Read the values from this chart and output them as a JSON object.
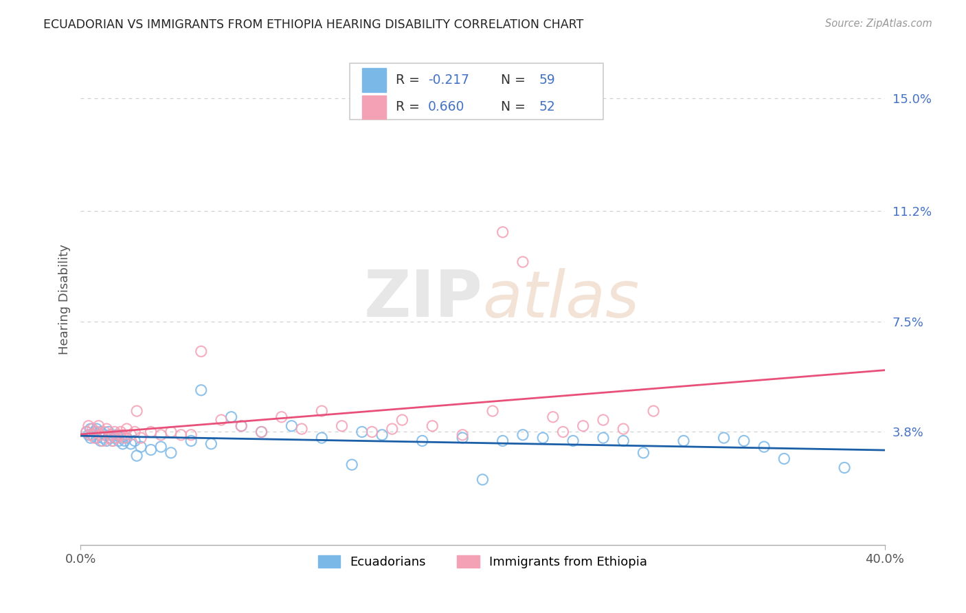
{
  "title": "ECUADORIAN VS IMMIGRANTS FROM ETHIOPIA HEARING DISABILITY CORRELATION CHART",
  "source": "Source: ZipAtlas.com",
  "ylabel": "Hearing Disability",
  "xlim": [
    0.0,
    40.0
  ],
  "ylim": [
    0.0,
    16.5
  ],
  "ytick_vals": [
    3.8,
    7.5,
    11.2,
    15.0
  ],
  "xtick_vals": [
    0.0,
    40.0
  ],
  "series1_label": "Ecuadorians",
  "series1_scatter_color": "#7ab8e8",
  "series1_line_color": "#1a5fa8",
  "series1_R": "-0.217",
  "series1_N": "59",
  "series2_label": "Immigrants from Ethiopia",
  "series2_scatter_color": "#f4a0b5",
  "series2_line_color": "#e8507a",
  "series2_R": "0.660",
  "series2_N": "52",
  "watermark_text": "ZIPatlas",
  "background_color": "#ffffff",
  "grid_color": "#d0d0d0",
  "title_color": "#222222",
  "tick_color": "#4472c4",
  "source_color": "#999999",
  "legend_R_label_color": "#333333",
  "legend_value_color": "#4472c4",
  "ecuadorians_x": [
    0.3,
    0.4,
    0.5,
    0.5,
    0.6,
    0.7,
    0.8,
    0.8,
    0.9,
    1.0,
    1.0,
    1.1,
    1.2,
    1.3,
    1.4,
    1.5,
    1.5,
    1.6,
    1.7,
    1.8,
    1.9,
    2.0,
    2.1,
    2.2,
    2.3,
    2.5,
    2.7,
    2.8,
    3.0,
    3.5,
    4.0,
    4.5,
    6.0,
    7.5,
    9.0,
    10.5,
    12.0,
    13.5,
    15.0,
    17.0,
    19.0,
    21.0,
    22.0,
    23.0,
    24.5,
    26.0,
    27.0,
    28.0,
    30.0,
    32.0,
    33.0,
    34.0,
    35.0,
    38.0,
    5.5,
    6.5,
    8.0,
    14.0,
    20.0
  ],
  "ecuadorians_y": [
    3.8,
    3.7,
    3.9,
    3.6,
    3.7,
    3.8,
    3.9,
    3.6,
    3.7,
    3.8,
    3.5,
    3.6,
    3.7,
    3.5,
    3.8,
    3.6,
    3.7,
    3.5,
    3.6,
    3.7,
    3.5,
    3.6,
    3.4,
    3.5,
    3.6,
    3.4,
    3.5,
    3.0,
    3.3,
    3.2,
    3.3,
    3.1,
    5.2,
    4.3,
    3.8,
    4.0,
    3.6,
    2.7,
    3.7,
    3.5,
    3.6,
    3.5,
    3.7,
    3.6,
    3.5,
    3.6,
    3.5,
    3.1,
    3.5,
    3.6,
    3.5,
    3.3,
    2.9,
    2.6,
    3.5,
    3.4,
    4.0,
    3.8,
    2.2
  ],
  "ethiopia_x": [
    0.3,
    0.4,
    0.5,
    0.6,
    0.7,
    0.8,
    0.9,
    1.0,
    1.1,
    1.2,
    1.3,
    1.4,
    1.5,
    1.6,
    1.7,
    1.8,
    1.9,
    2.0,
    2.1,
    2.2,
    2.3,
    2.5,
    2.7,
    3.0,
    3.5,
    4.0,
    5.0,
    6.0,
    7.0,
    8.0,
    9.0,
    10.0,
    11.0,
    12.0,
    13.0,
    14.5,
    16.0,
    17.5,
    19.0,
    20.5,
    22.0,
    23.5,
    25.0,
    26.0,
    27.0,
    28.5,
    2.8,
    4.5,
    5.5,
    15.5,
    21.0,
    24.0
  ],
  "ethiopia_y": [
    3.8,
    4.0,
    3.7,
    3.9,
    3.6,
    3.8,
    4.0,
    3.7,
    3.5,
    3.8,
    3.9,
    3.6,
    3.7,
    3.5,
    3.8,
    3.6,
    3.7,
    3.8,
    3.7,
    3.6,
    3.9,
    3.7,
    3.8,
    3.6,
    3.8,
    3.7,
    3.7,
    6.5,
    4.2,
    4.0,
    3.8,
    4.3,
    3.9,
    4.5,
    4.0,
    3.8,
    4.2,
    4.0,
    3.7,
    4.5,
    9.5,
    4.3,
    4.0,
    4.2,
    3.9,
    4.5,
    4.5,
    3.8,
    3.7,
    3.9,
    10.5,
    3.8
  ]
}
